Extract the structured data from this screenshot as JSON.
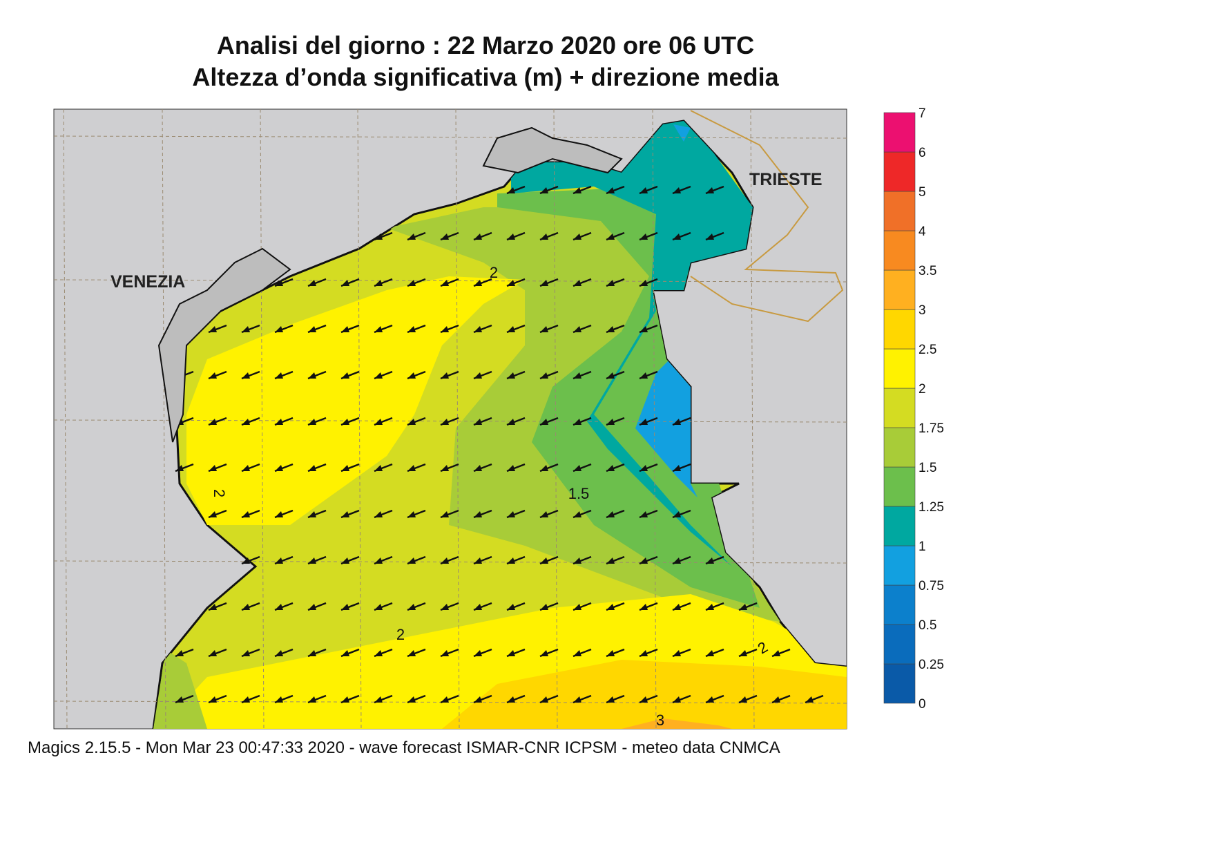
{
  "header": {
    "title_line1": "Analisi del giorno :  22   Marzo   2020   ore 06 UTC",
    "title_line2": "Altezza d’onda significativa (m) + direzione media"
  },
  "labels": {
    "venezia": "VENEZIA",
    "trieste": "TRIESTE"
  },
  "contour_labels": [
    "2",
    "1.5",
    "2",
    "2",
    "2",
    "3"
  ],
  "colorbar": {
    "ticks": [
      "0",
      "0.25",
      "0.5",
      "0.75",
      "1",
      "1.25",
      "1.5",
      "1.75",
      "2",
      "2.5",
      "3",
      "3.5",
      "4",
      "5",
      "6",
      "7"
    ],
    "colors": [
      "#0a5aa8",
      "#0a6cbc",
      "#0c80cc",
      "#12a0e0",
      "#00a8a0",
      "#6cbf4c",
      "#a8cc38",
      "#d4dc22",
      "#fff200",
      "#ffd700",
      "#ffb020",
      "#f88a20",
      "#f07028",
      "#ee2828",
      "#ec1070"
    ]
  },
  "footer": "Magics 2.15.5 - Mon Mar 23 00:47:33 2020 - wave forecast  ISMAR-CNR  ICPSM - meteo data   CNMCA"
}
